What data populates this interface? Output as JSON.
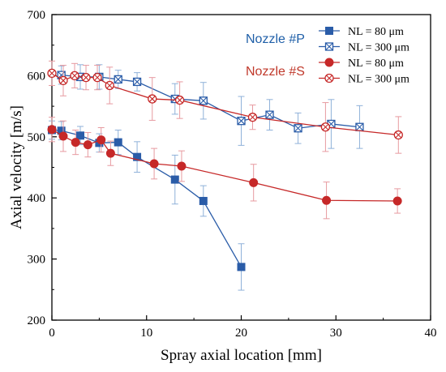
{
  "chart_data": {
    "type": "line",
    "xlabel": "Spray axial location [mm]",
    "ylabel": "Axial velocity [m/s]",
    "xlim": [
      0,
      40
    ],
    "ylim": [
      200,
      700
    ],
    "xticks": [
      "0",
      "10",
      "20",
      "30",
      "40"
    ],
    "yticks": [
      "200",
      "300",
      "400",
      "500",
      "600",
      "700"
    ],
    "grid": false,
    "legend_position": "top-right",
    "annotations": [
      {
        "text": "Nozzle #P",
        "color": "#1f5fa8"
      },
      {
        "text": "Nozzle #S",
        "color": "#c0392b"
      }
    ],
    "series": [
      {
        "name": "NL = 80 μm",
        "color": "#2a5ca8",
        "marker": "square",
        "x": [
          0,
          1,
          3,
          5,
          7,
          9,
          13,
          16,
          20
        ],
        "y": [
          511,
          510,
          502,
          490,
          491,
          467,
          430,
          395,
          287
        ],
        "err": [
          15,
          15,
          15,
          15,
          20,
          25,
          40,
          25,
          38
        ]
      },
      {
        "name": "NL = 300 μm",
        "color": "#2a5ca8",
        "marker": "square-x",
        "x": [
          1,
          3,
          5,
          7,
          9,
          13,
          16,
          20,
          23,
          26,
          29.5,
          32.5
        ],
        "y": [
          601,
          598,
          598,
          594,
          590,
          562,
          559,
          526,
          536,
          514,
          521,
          516
        ],
        "err": [
          15,
          20,
          20,
          15,
          15,
          25,
          30,
          40,
          25,
          25,
          40,
          35
        ]
      },
      {
        "name": "NL = 80 μm",
        "color": "#c62828",
        "marker": "circle",
        "x": [
          0,
          1.2,
          2.5,
          3.8,
          5.2,
          6.2,
          10.8,
          13.7,
          21.3,
          29,
          36.5
        ],
        "y": [
          512,
          501,
          491,
          487,
          495,
          473,
          456,
          452,
          425,
          396,
          395
        ],
        "err": [
          20,
          25,
          20,
          20,
          20,
          20,
          25,
          25,
          30,
          30,
          20
        ]
      },
      {
        "name": "NL = 300 μm",
        "color": "#c62828",
        "marker": "circle-x",
        "x": [
          0,
          1.2,
          2.4,
          3.6,
          4.8,
          6.1,
          10.6,
          13.5,
          21.2,
          28.9,
          36.6
        ],
        "y": [
          604,
          592,
          600,
          597,
          597,
          584,
          562,
          560,
          532,
          516,
          503
        ],
        "err": [
          20,
          25,
          20,
          20,
          20,
          30,
          35,
          30,
          20,
          40,
          30
        ]
      }
    ]
  }
}
